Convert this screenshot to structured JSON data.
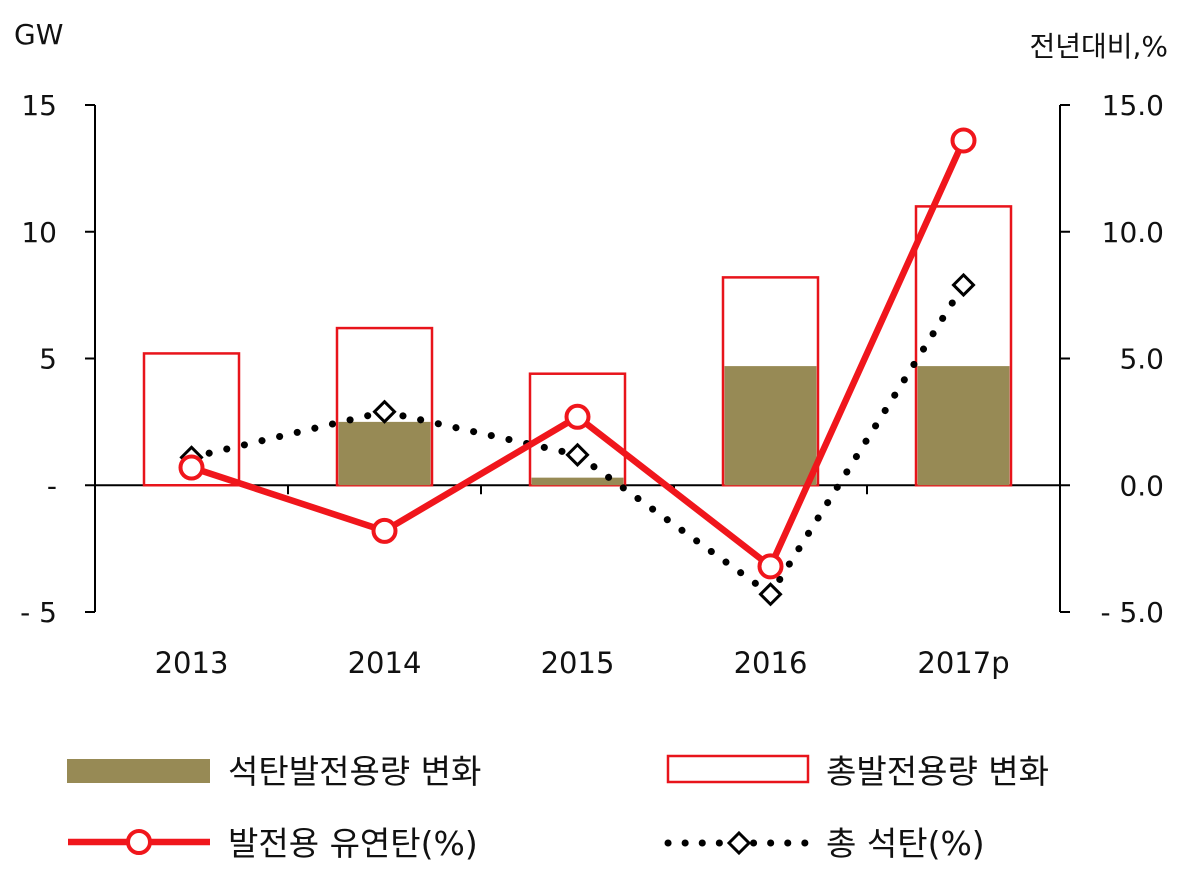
{
  "chart_data": {
    "type": "bar",
    "categories": [
      "2013",
      "2014",
      "2015",
      "2016",
      "2017p"
    ],
    "left_axis": {
      "unit_label": "GW",
      "ylim": [
        -5,
        15
      ],
      "ticks": [
        15,
        10,
        5,
        0,
        -5
      ],
      "tick_labels": [
        "15",
        "10",
        "5",
        "-",
        "- 5"
      ]
    },
    "right_axis": {
      "unit_label": "전년대비,%",
      "ylim": [
        -5,
        15
      ],
      "ticks": [
        15,
        10,
        5,
        0,
        -5
      ],
      "tick_labels": [
        "15.0",
        "10.0",
        "5.0",
        "0.0",
        "- 5.0"
      ]
    },
    "series": [
      {
        "name": "석탄발전용량 변화",
        "kind": "bar-filled",
        "axis": "left",
        "color": "#978a55",
        "values": [
          0,
          2.5,
          0.3,
          4.7,
          4.7
        ]
      },
      {
        "name": "총발전용량 변화",
        "kind": "bar-outline",
        "axis": "left",
        "color": "#e8141b",
        "values": [
          5.2,
          6.2,
          4.4,
          8.2,
          11.0
        ]
      },
      {
        "name": "발전용 유연탄(%)",
        "kind": "line-circle",
        "axis": "right",
        "color": "#f0161c",
        "values": [
          0.7,
          -1.8,
          2.7,
          -3.2,
          13.6
        ]
      },
      {
        "name": "총 석탄(%)",
        "kind": "dotted-diamond",
        "axis": "right",
        "color": "#000000",
        "values": [
          1.1,
          2.9,
          1.2,
          -4.3,
          7.9
        ]
      }
    ],
    "grid": false,
    "legend_position": "bottom"
  }
}
